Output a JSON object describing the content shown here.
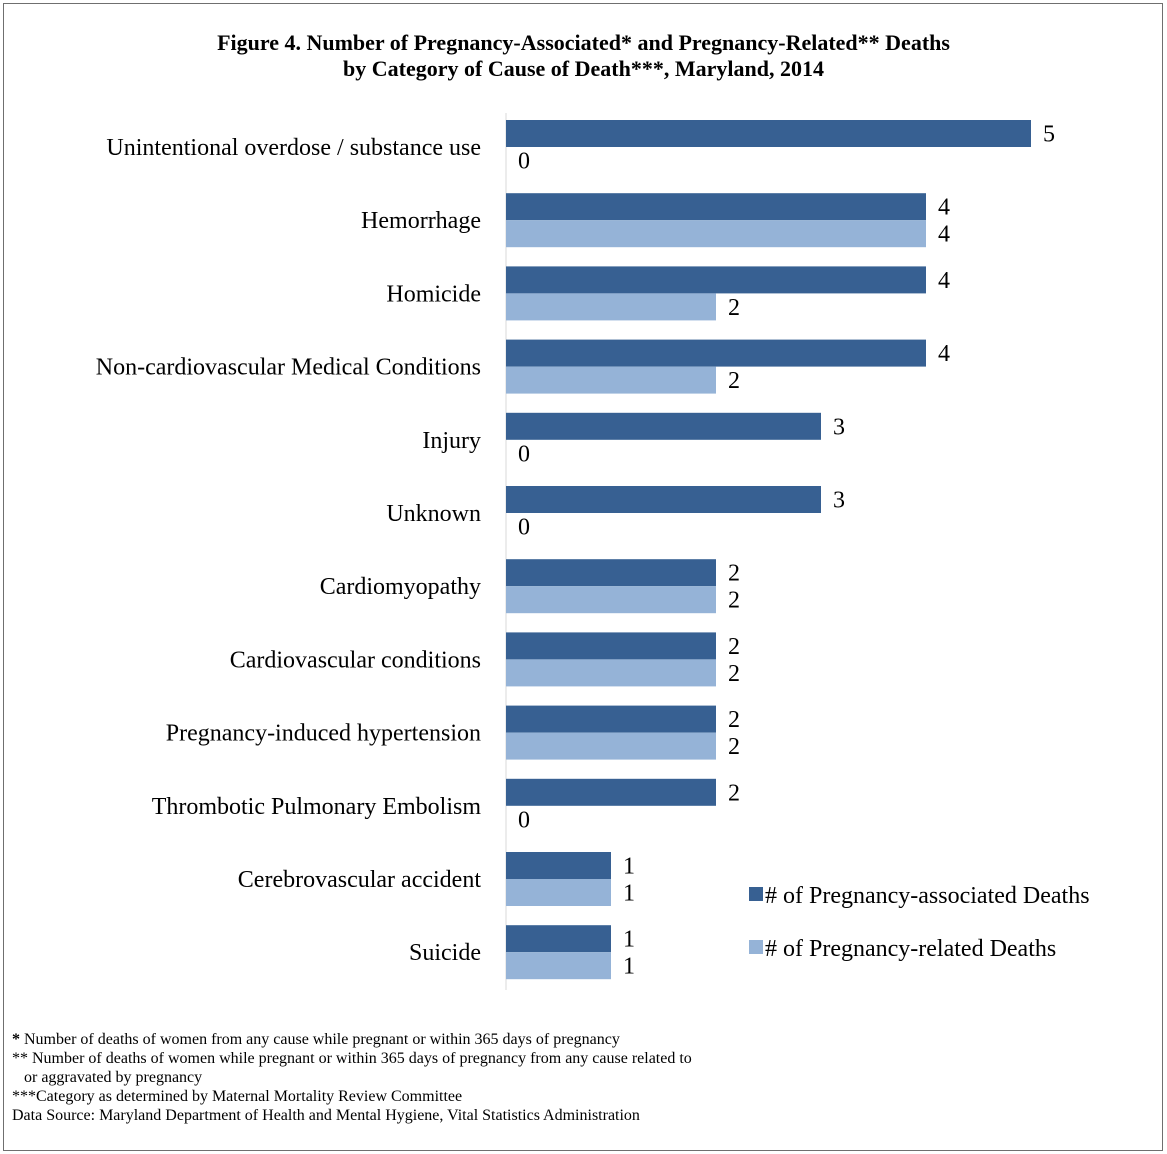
{
  "title": {
    "line1": "Figure 4. Number of Pregnancy-Associated* and Pregnancy-Related** Deaths",
    "line2": "by Category of Cause of Death***, Maryland, 2014"
  },
  "chart_data": {
    "type": "bar",
    "orientation": "horizontal",
    "categories": [
      "Unintentional overdose / substance use",
      "Hemorrhage",
      "Homicide",
      "Non-cardiovascular Medical Conditions",
      "Injury",
      "Unknown",
      "Cardiomyopathy",
      "Cardiovascular conditions",
      "Pregnancy-induced hypertension",
      "Thrombotic Pulmonary Embolism",
      "Cerebrovascular accident",
      "Suicide"
    ],
    "series": [
      {
        "name": "# of Pregnancy-associated Deaths",
        "color": "#376092",
        "values": [
          5,
          4,
          4,
          4,
          3,
          3,
          2,
          2,
          2,
          2,
          1,
          1
        ]
      },
      {
        "name": "# of Pregnancy-related Deaths",
        "color": "#95b3d7",
        "values": [
          0,
          4,
          2,
          2,
          0,
          0,
          2,
          2,
          2,
          0,
          1,
          1
        ]
      }
    ],
    "xlim": [
      0,
      5
    ],
    "data_labels": true,
    "grid": false,
    "legend_position": "bottom-right"
  },
  "footnotes": {
    "note1_mark": "*",
    "note1_text": " Number of deaths of women from any cause while pregnant or within 365 days of pregnancy",
    "note2_line1": "** Number of deaths of women while pregnant or within 365 days of pregnancy from any cause related to",
    "note2_line2": "or aggravated by pregnancy",
    "note3": "***Category as determined by Maternal Mortality Review Committee",
    "source": "Data Source: Maryland Department of Health and Mental Hygiene, Vital Statistics Administration"
  }
}
